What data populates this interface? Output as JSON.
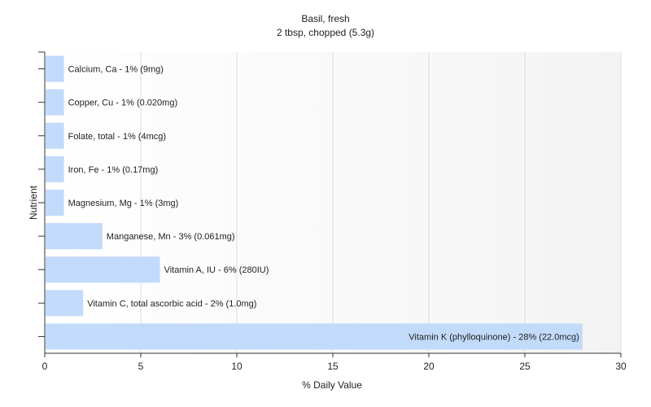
{
  "chart_data": {
    "type": "bar",
    "orientation": "horizontal",
    "title": "Basil, fresh",
    "subtitle": "2 tbsp, chopped (5.3g)",
    "xlabel": "% Daily Value",
    "ylabel": "Nutrient",
    "xlim": [
      0,
      30
    ],
    "xticks": [
      0,
      5,
      10,
      15,
      20,
      25,
      30
    ],
    "grid": true,
    "bar_color": "#c2dbfb",
    "categories": [
      "Calcium, Ca",
      "Copper, Cu",
      "Folate, total",
      "Iron, Fe",
      "Magnesium, Mg",
      "Manganese, Mn",
      "Vitamin A, IU",
      "Vitamin C, total ascorbic acid",
      "Vitamin K (phylloquinone)"
    ],
    "values": [
      1,
      1,
      1,
      1,
      1,
      3,
      6,
      2,
      28
    ],
    "labels": [
      "Calcium, Ca - 1% (9mg)",
      "Copper, Cu - 1% (0.020mg)",
      "Folate, total - 1% (4mcg)",
      "Iron, Fe - 1% (0.17mg)",
      "Magnesium, Mg - 1% (3mg)",
      "Manganese, Mn - 3% (0.061mg)",
      "Vitamin A, IU - 6% (280IU)",
      "Vitamin C, total ascorbic acid - 2% (1.0mg)",
      "Vitamin K (phylloquinone) - 28% (22.0mcg)"
    ]
  }
}
